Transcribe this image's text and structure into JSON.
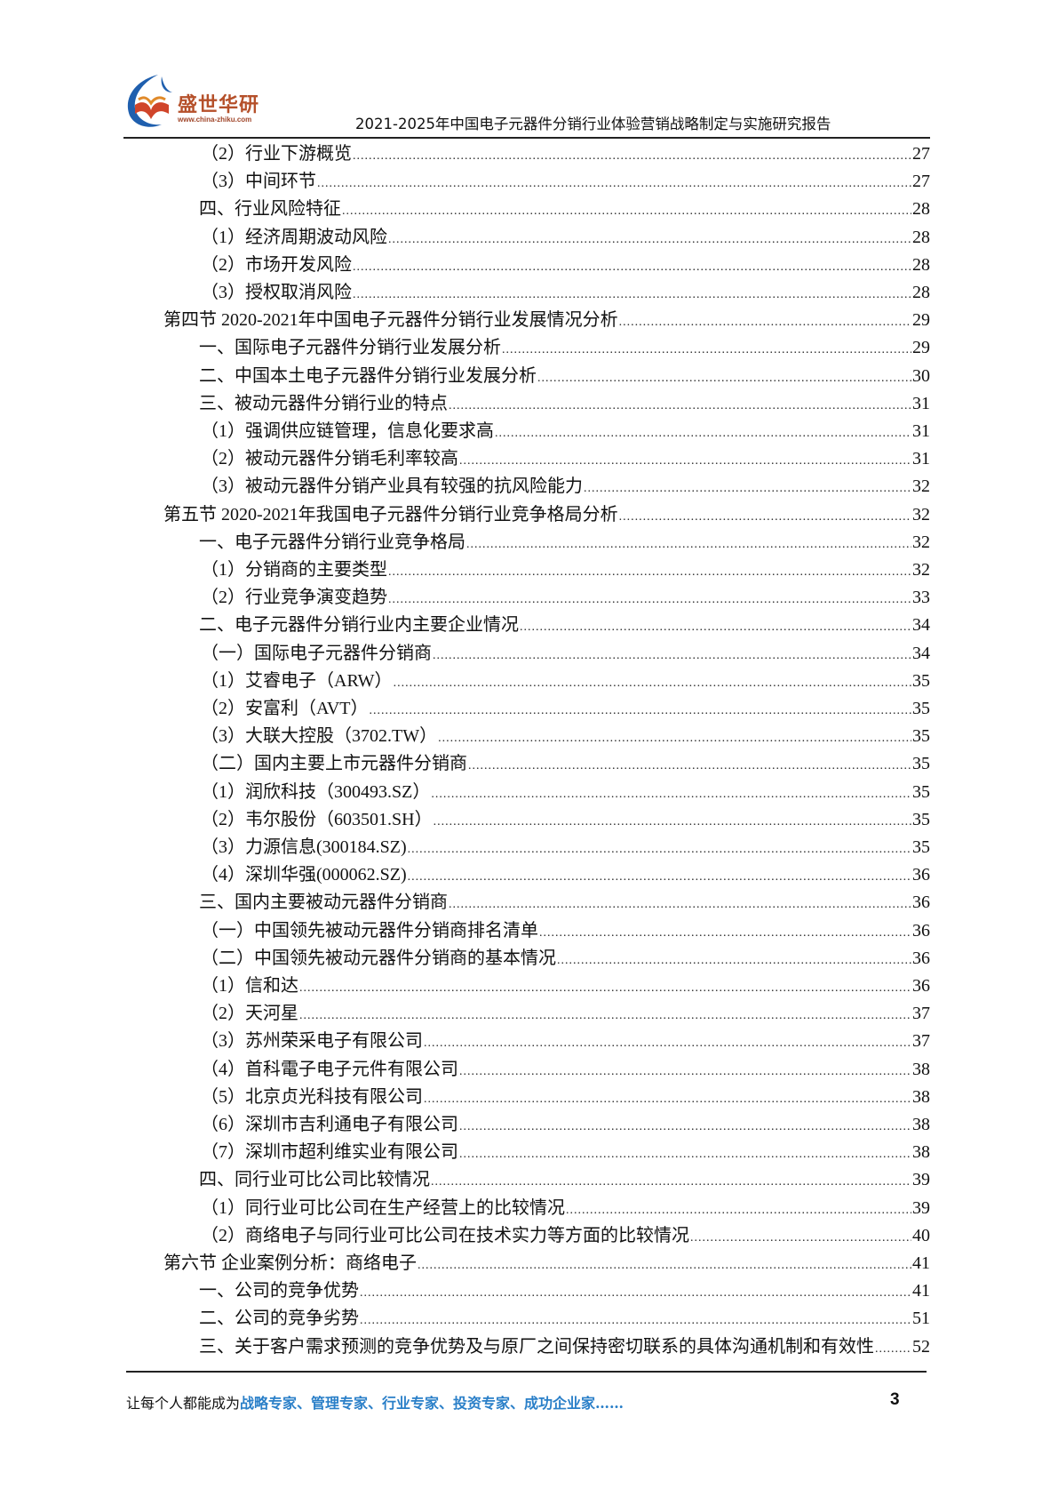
{
  "header": {
    "logo_name": "盛世华研",
    "logo_url": "www.china-zhiku.com",
    "title": "2021-2025年中国电子元器件分销行业体验营销战略制定与实施研究报告"
  },
  "toc": [
    {
      "level": 3,
      "text": "（2）行业下游概览",
      "page": "27"
    },
    {
      "level": 3,
      "text": "（3）中间环节",
      "page": "27"
    },
    {
      "level": 2,
      "text": "四、行业风险特征",
      "page": "28"
    },
    {
      "level": 3,
      "text": "（1）经济周期波动风险",
      "page": "28"
    },
    {
      "level": 3,
      "text": "（2）市场开发风险",
      "page": "28"
    },
    {
      "level": 3,
      "text": "（3）授权取消风险",
      "page": "28"
    },
    {
      "level": 1,
      "text": "第四节  2020-2021年中国电子元器件分销行业发展情况分析",
      "page": "29"
    },
    {
      "level": 2,
      "text": "一、国际电子元器件分销行业发展分析",
      "page": "29"
    },
    {
      "level": 2,
      "text": "二、中国本土电子元器件分销行业发展分析",
      "page": "30"
    },
    {
      "level": 2,
      "text": "三、被动元器件分销行业的特点",
      "page": "31"
    },
    {
      "level": 3,
      "text": "（1）强调供应链管理，信息化要求高",
      "page": "31"
    },
    {
      "level": 3,
      "text": "（2）被动元器件分销毛利率较高",
      "page": "31"
    },
    {
      "level": 3,
      "text": "（3）被动元器件分销产业具有较强的抗风险能力",
      "page": "32"
    },
    {
      "level": 1,
      "text": "第五节  2020-2021年我国电子元器件分销行业竞争格局分析",
      "page": "32"
    },
    {
      "level": 2,
      "text": "一、电子元器件分销行业竞争格局",
      "page": "32"
    },
    {
      "level": 3,
      "text": "（1）分销商的主要类型",
      "page": "32"
    },
    {
      "level": 3,
      "text": "（2）行业竞争演变趋势",
      "page": "33"
    },
    {
      "level": 2,
      "text": "二、电子元器件分销行业内主要企业情况",
      "page": "34"
    },
    {
      "level": 3,
      "text": "（一）国际电子元器件分销商",
      "page": "34"
    },
    {
      "level": 3,
      "text": "（1）艾睿电子（ARW）",
      "page": "35"
    },
    {
      "level": 3,
      "text": "（2）安富利（AVT）",
      "page": "35"
    },
    {
      "level": 3,
      "text": "（3）大联大控股（3702.TW）",
      "page": "35"
    },
    {
      "level": 3,
      "text": "（二）国内主要上市元器件分销商",
      "page": "35"
    },
    {
      "level": 3,
      "text": "（1）润欣科技（300493.SZ）",
      "page": "35"
    },
    {
      "level": 3,
      "text": "（2）韦尔股份（603501.SH）",
      "page": "35"
    },
    {
      "level": 3,
      "text": "（3）力源信息(300184.SZ)",
      "page": "35"
    },
    {
      "level": 3,
      "text": "（4）深圳华强(000062.SZ)",
      "page": "36"
    },
    {
      "level": 2,
      "text": "三、国内主要被动元器件分销商",
      "page": "36"
    },
    {
      "level": 3,
      "text": "（一）中国领先被动元器件分销商排名清单",
      "page": "36"
    },
    {
      "level": 3,
      "text": "（二）中国领先被动元器件分销商的基本情况",
      "page": "36"
    },
    {
      "level": 3,
      "text": "（1）信和达",
      "page": "36"
    },
    {
      "level": 3,
      "text": "（2）天河星",
      "page": "37"
    },
    {
      "level": 3,
      "text": "（3）苏州荣采电子有限公司",
      "page": "37"
    },
    {
      "level": 3,
      "text": "（4）首科電子电子元件有限公司",
      "page": "38"
    },
    {
      "level": 3,
      "text": "（5）北京贞光科技有限公司",
      "page": "38"
    },
    {
      "level": 3,
      "text": "（6）深圳市吉利通电子有限公司",
      "page": "38"
    },
    {
      "level": 3,
      "text": "（7）深圳市超利维实业有限公司",
      "page": "38"
    },
    {
      "level": 2,
      "text": "四、同行业可比公司比较情况",
      "page": "39"
    },
    {
      "level": 3,
      "text": "（1）同行业可比公司在生产经营上的比较情况",
      "page": "39"
    },
    {
      "level": 3,
      "text": "（2）商络电子与同行业可比公司在技术实力等方面的比较情况",
      "page": "40"
    },
    {
      "level": 1,
      "text": "第六节  企业案例分析：商络电子",
      "page": "41"
    },
    {
      "level": 2,
      "text": "一、公司的竞争优势",
      "page": "41"
    },
    {
      "level": 2,
      "text": "二、公司的竞争劣势",
      "page": "51"
    },
    {
      "level": 2,
      "text": "三、关于客户需求预测的竞争优势及与原厂之间保持密切联系的具体沟通机制和有效性",
      "page": "52"
    }
  ],
  "footer": {
    "slogan_prefix": "让每个人都能成为",
    "slogan_highlight": "战略专家、管理专家、行业专家、投资专家、成功企业家……",
    "page_number": "3"
  },
  "colors": {
    "highlight": "#2a7fc8",
    "logo_red": "#b5502a",
    "logo_blue": "#1f5fae"
  }
}
